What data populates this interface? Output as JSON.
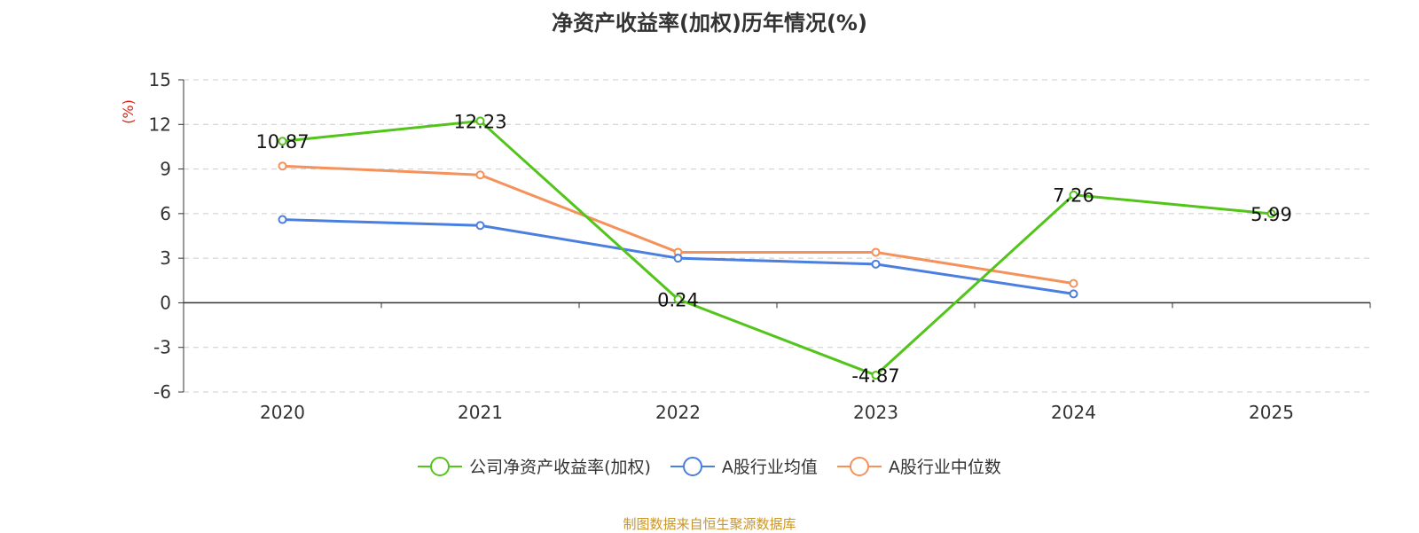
{
  "chart_data": {
    "type": "line",
    "title": "净资产收益率(加权)历年情况(%)",
    "ylabel": "(%)",
    "categories": [
      "2020",
      "2021",
      "2022",
      "2023",
      "2024",
      "2025"
    ],
    "ylim": [
      -6,
      15
    ],
    "yticks": [
      15,
      12,
      9,
      6,
      3,
      0,
      -3,
      -6
    ],
    "grid": true,
    "legend_position": "bottom",
    "series": [
      {
        "name": "公司净资产收益率(加权)",
        "color": "#52c41a",
        "values": [
          10.87,
          12.23,
          0.24,
          -4.87,
          7.26,
          5.99
        ],
        "labels": [
          "10.87",
          "12.23",
          "0.24",
          "-4.87",
          "7.26",
          "5.99"
        ]
      },
      {
        "name": "A股行业均值",
        "color": "#4a7ee0",
        "values": [
          5.6,
          5.2,
          3.0,
          2.6,
          0.6,
          null
        ]
      },
      {
        "name": "A股行业中位数",
        "color": "#f5915a",
        "values": [
          9.2,
          8.6,
          3.4,
          3.4,
          1.3,
          null
        ]
      }
    ]
  },
  "source_note": "制图数据来自恒生聚源数据库",
  "colors": {
    "axis": "#333333",
    "grid": "#cccccc",
    "ylabel": "#e0201a",
    "source": "#c8952a"
  }
}
